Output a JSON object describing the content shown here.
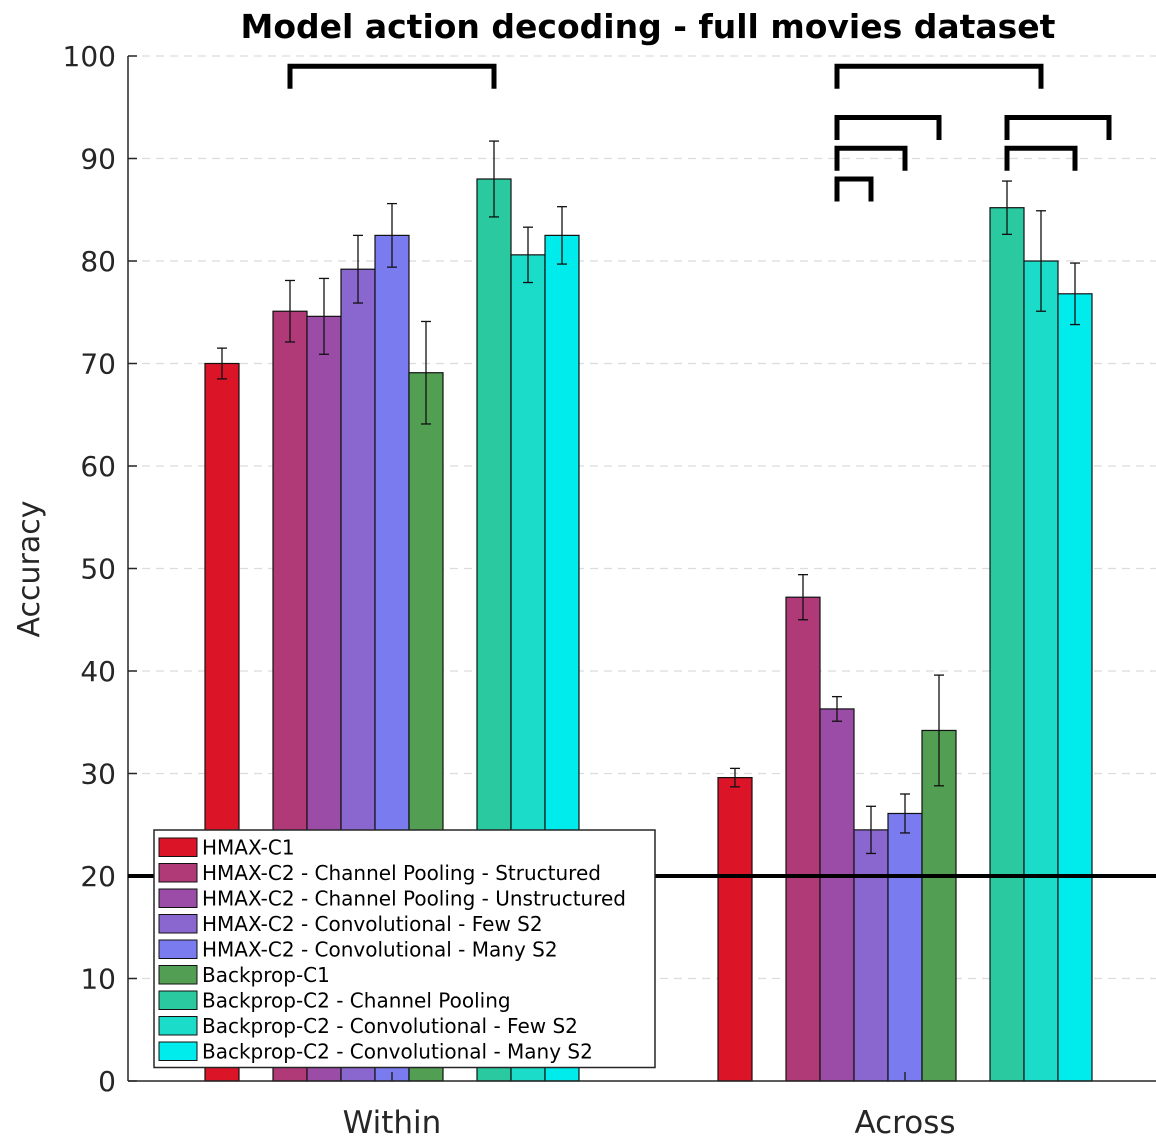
{
  "chart_data": {
    "type": "bar",
    "title": "Model action decoding - full movies dataset",
    "xlabel": "",
    "ylabel": "Accuracy",
    "ylim": [
      0,
      100
    ],
    "yticks": [
      0,
      10,
      20,
      30,
      40,
      50,
      60,
      70,
      80,
      90,
      100
    ],
    "grid": "horizontal dashed",
    "legend_position": "lower-left",
    "categories": [
      "Within",
      "Across"
    ],
    "chance_line": 20,
    "series": [
      {
        "name": "HMAX-C1",
        "color": "#dc1428",
        "values": [
          70.0,
          29.6
        ],
        "errors": [
          1.5,
          0.9
        ]
      },
      {
        "name": "HMAX-C2 - Channel Pooling - Structured",
        "color": "#b03a78",
        "values": [
          75.1,
          47.2
        ],
        "errors": [
          3.0,
          2.2
        ]
      },
      {
        "name": "HMAX-C2 - Channel Pooling - Unstructured",
        "color": "#9b4ca6",
        "values": [
          74.6,
          36.3
        ],
        "errors": [
          3.7,
          1.2
        ]
      },
      {
        "name": "HMAX-C2 - Convolutional - Few S2",
        "color": "#8a66cf",
        "values": [
          79.2,
          24.5
        ],
        "errors": [
          3.3,
          2.3
        ]
      },
      {
        "name": "HMAX-C2 - Convolutional - Many S2",
        "color": "#7b7bf0",
        "values": [
          82.5,
          26.1
        ],
        "errors": [
          3.1,
          1.9
        ]
      },
      {
        "name": "Backprop-C1",
        "color": "#529e52",
        "values": [
          69.1,
          34.2
        ],
        "errors": [
          5.0,
          5.4
        ]
      },
      {
        "name": "Backprop-C2 - Channel Pooling",
        "color": "#2ac9a0",
        "values": [
          88.0,
          85.2
        ],
        "errors": [
          3.7,
          2.6
        ]
      },
      {
        "name": "Backprop-C2 - Convolutional - Few S2",
        "color": "#1adcc8",
        "values": [
          80.6,
          80.0
        ],
        "errors": [
          2.7,
          4.9
        ]
      },
      {
        "name": "Backprop-C2 - Convolutional - Many S2",
        "color": "#00ecec",
        "values": [
          82.5,
          76.8
        ],
        "errors": [
          2.8,
          3.0
        ]
      }
    ],
    "significance_brackets": [
      {
        "category": "Within",
        "from_series": 1,
        "to_series": 5,
        "level": 99
      },
      {
        "category": "Across",
        "from_series": 2,
        "to_series": 6,
        "level": 99
      },
      {
        "category": "Across",
        "from_series": 2,
        "to_series": 4,
        "level": 94
      },
      {
        "category": "Across",
        "from_series": 2,
        "to_series": 3,
        "level": 91
      },
      {
        "category": "Across",
        "from_series": 2,
        "to_series": 2,
        "level": 88
      },
      {
        "category": "Across",
        "from_series": 6,
        "to_series": 8,
        "level": 94
      },
      {
        "category": "Across",
        "from_series": 6,
        "to_series": 7,
        "level": 91
      }
    ]
  }
}
